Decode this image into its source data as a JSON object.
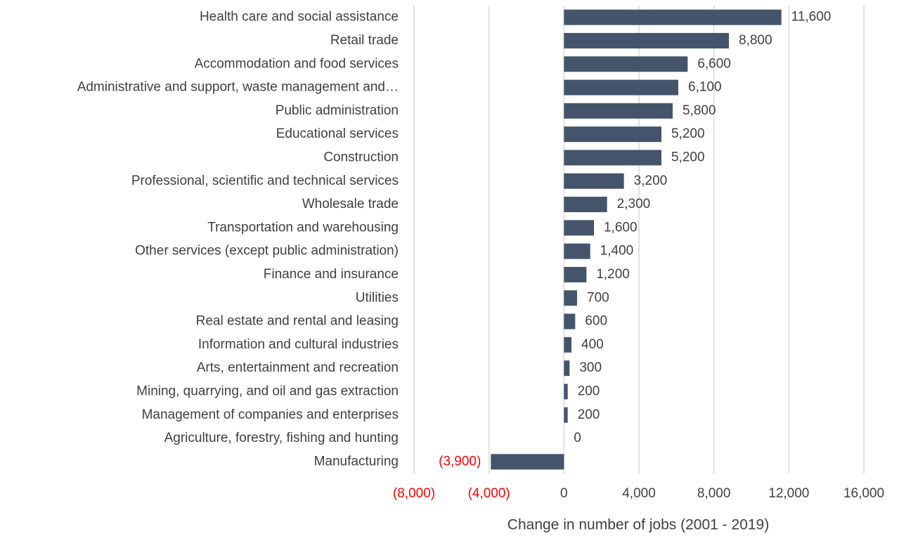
{
  "chart_data": {
    "type": "barh",
    "axis_title": "Change in number of jobs (2001 - 2019)",
    "categories": [
      "Health care and social assistance",
      "Retail trade",
      "Accommodation and food services",
      "Administrative and support, waste management and…",
      "Public administration",
      "Educational services",
      "Construction",
      "Professional, scientific and technical services",
      "Wholesale trade",
      "Transportation and warehousing",
      "Other services (except public administration)",
      "Finance and insurance",
      "Utilities",
      "Real estate and rental and leasing",
      "Information and cultural industries",
      "Arts, entertainment and recreation",
      "Mining, quarrying, and oil and gas extraction",
      "Management of companies and enterprises",
      "Agriculture, forestry, fishing and hunting",
      "Manufacturing"
    ],
    "values": [
      11600,
      8800,
      6600,
      6100,
      5800,
      5200,
      5200,
      3200,
      2300,
      1600,
      1400,
      1200,
      700,
      600,
      400,
      300,
      200,
      200,
      0,
      -3900
    ],
    "value_labels": [
      "11,600",
      "8,800",
      "6,600",
      "6,100",
      "5,800",
      "5,200",
      "5,200",
      "3,200",
      "2,300",
      "1,600",
      "1,400",
      "1,200",
      "700",
      "600",
      "400",
      "300",
      "200",
      "200",
      "0",
      "(3,900)"
    ],
    "color": "#44546a",
    "negative_label_color": "#ff0000",
    "xlim": [
      -8000,
      16000
    ],
    "xticks": [
      {
        "value": -8000,
        "label": "(8,000)"
      },
      {
        "value": -4000,
        "label": "(4,000)"
      },
      0,
      {
        "value": 4000,
        "label": "4,000"
      },
      {
        "value": 8000,
        "label": "8,000"
      },
      {
        "value": 12000,
        "label": "12,000"
      },
      {
        "value": 16000,
        "label": "16,000"
      }
    ],
    "grid": true
  }
}
